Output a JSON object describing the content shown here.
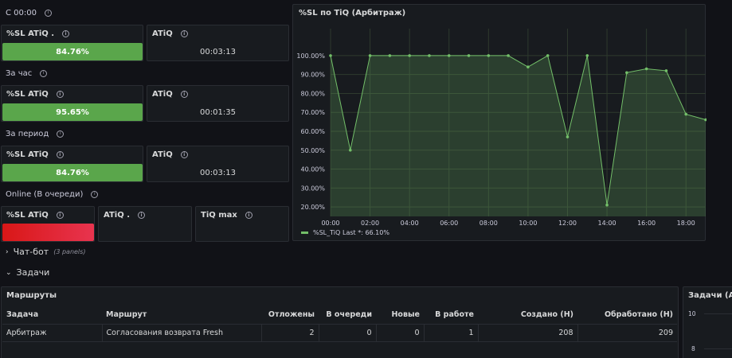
{
  "rows": {
    "since_midnight": "С 00:00",
    "per_hour": "За час",
    "per_period": "За период",
    "online": "Online (В очереди)"
  },
  "stat_panels": {
    "p1": {
      "sl_title": "%SL ATiQ .",
      "sl_value": "84.76%",
      "atiq_title": "ATiQ",
      "atiq_value": "00:03:13"
    },
    "p2": {
      "sl_title": "%SL ATiQ",
      "sl_value": "95.65%",
      "atiq_title": "ATiQ",
      "atiq_value": "00:01:35"
    },
    "p3": {
      "sl_title": "%SL ATiQ",
      "sl_value": "84.76%",
      "atiq_title": "ATiQ",
      "atiq_value": "00:03:13"
    },
    "p4": {
      "sl_title": "%SL ATiQ",
      "atiq_title": "ATiQ .",
      "tiq_title": "TiQ max"
    }
  },
  "colors": {
    "green": "#5aa64b",
    "red": "#e02f44",
    "line": "#73bf69",
    "background": "#111217",
    "panel": "#181b1f"
  },
  "chart_panel": {
    "title": "%SL по TiQ (Арбитраж)"
  },
  "chart_data": {
    "type": "line",
    "x": [
      "00:00",
      "01:00",
      "02:00",
      "03:00",
      "04:00",
      "05:00",
      "06:00",
      "07:00",
      "08:00",
      "09:00",
      "10:00",
      "11:00",
      "12:00",
      "13:00",
      "14:00",
      "15:00",
      "16:00",
      "17:00",
      "18:00",
      "19:00"
    ],
    "series": [
      {
        "name": "%SL_TiQ",
        "values": [
          100,
          50,
          100,
          100,
          100,
          100,
          100,
          100,
          100,
          100,
          94,
          100,
          57,
          100,
          21,
          91,
          93,
          92,
          69,
          66.1
        ]
      }
    ],
    "x_ticks": [
      "00:00",
      "02:00",
      "04:00",
      "06:00",
      "08:00",
      "10:00",
      "12:00",
      "14:00",
      "16:00",
      "18:00"
    ],
    "y_ticks": [
      "100.00%",
      "90.00%",
      "80.00%",
      "70.00%",
      "60.00%",
      "50.00%",
      "40.00%",
      "30.00%",
      "20.00%"
    ],
    "ylim": [
      15,
      105
    ],
    "grid": true,
    "legend": {
      "label": "%SL_TiQ",
      "stat": "Last *: 66.10%",
      "position": "bottom-left"
    }
  },
  "sections": {
    "chatbot": {
      "label": "Чат-бот",
      "count": "(3 panels)"
    },
    "tasks": {
      "label": "Задачи"
    }
  },
  "routes_table": {
    "title": "Маршруты",
    "columns": [
      "Задача",
      "Маршрут",
      "Отложены",
      "В очереди",
      "Новые",
      "В работе",
      "Создано (Н)",
      "Обработано (Н)"
    ],
    "rows": [
      [
        "Арбитраж",
        "Согласования возврата Fresh",
        "2",
        "0",
        "0",
        "1",
        "208",
        "209"
      ]
    ]
  },
  "side_panel": {
    "title": "Задачи (Арб",
    "y_ticks": [
      "10",
      "8"
    ]
  }
}
